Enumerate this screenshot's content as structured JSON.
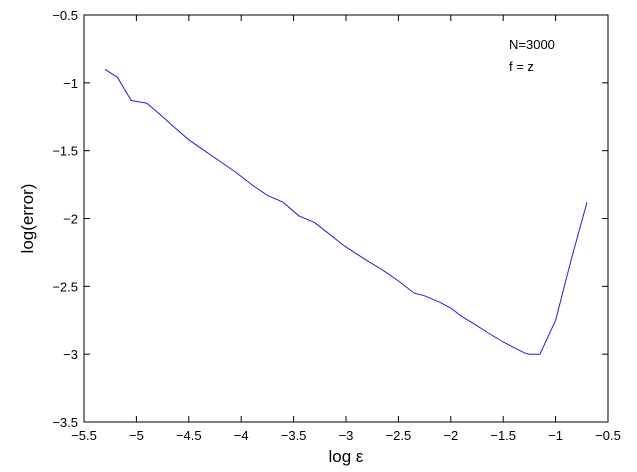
{
  "chart_data": {
    "type": "line",
    "title": "",
    "xlabel": "log ε",
    "ylabel": "log(error)",
    "xlim": [
      -5.5,
      -0.5
    ],
    "ylim": [
      -3.5,
      -0.5
    ],
    "xticks": [
      -5.5,
      -5,
      -4.5,
      -4,
      -3.5,
      -3,
      -2.5,
      -2,
      -1.5,
      -1,
      -0.5
    ],
    "xtick_labels": [
      "−5.5",
      "−5",
      "−4.5",
      "−4",
      "−3.5",
      "−3",
      "−2.5",
      "−2",
      "−1.5",
      "−1",
      "−0.5"
    ],
    "yticks": [
      -3.5,
      -3,
      -2.5,
      -2,
      -1.5,
      -1,
      -0.5
    ],
    "ytick_labels": [
      "−3.5",
      "−3",
      "−2.5",
      "−2",
      "−1.5",
      "−1",
      "−0.5"
    ],
    "grid": false,
    "annotations": [
      "N=3000",
      "f = z"
    ],
    "series": [
      {
        "color": "#1f1fdc",
        "x": [
          -5.3,
          -5.18,
          -5.05,
          -4.9,
          -4.78,
          -4.65,
          -4.5,
          -4.35,
          -4.2,
          -4.05,
          -3.9,
          -3.75,
          -3.6,
          -3.45,
          -3.3,
          -3.15,
          -3.02,
          -2.9,
          -2.8,
          -2.65,
          -2.5,
          -2.35,
          -2.25,
          -2.1,
          -2.0,
          -1.9,
          -1.75,
          -1.65,
          -1.5,
          -1.4,
          -1.3,
          -1.25,
          -1.15,
          -1.0,
          -0.85,
          -0.7
        ],
        "y": [
          -0.9,
          -0.96,
          -1.13,
          -1.15,
          -1.23,
          -1.32,
          -1.42,
          -1.5,
          -1.58,
          -1.66,
          -1.75,
          -1.83,
          -1.88,
          -1.98,
          -2.03,
          -2.12,
          -2.2,
          -2.26,
          -2.31,
          -2.38,
          -2.46,
          -2.55,
          -2.57,
          -2.62,
          -2.66,
          -2.72,
          -2.79,
          -2.84,
          -2.91,
          -2.95,
          -2.99,
          -3.0,
          -3.0,
          -2.75,
          -2.3,
          -1.88
        ]
      }
    ]
  }
}
